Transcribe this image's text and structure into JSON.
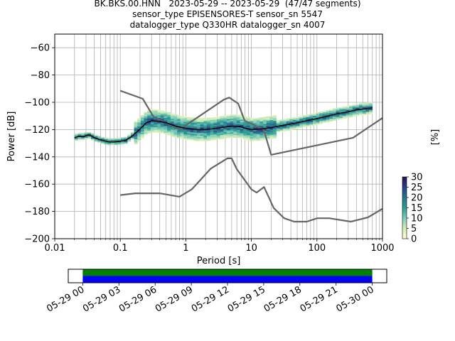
{
  "title": {
    "line1": "BK.BKS.00.HNN   2023-05-29 -- 2023-05-29  (47/47 segments)",
    "line2": "sensor_type EPISENSORES-T sensor_sn 5547",
    "line3": "datalogger_type Q330HR datalogger_sn 4007"
  },
  "chart_data": [
    {
      "type": "heatmap",
      "subtype": "probabilistic power spectral density",
      "xlabel": "Period [s]",
      "ylabel": "Power [dB]",
      "x_scale": "log",
      "xlim": [
        0.01,
        1000
      ],
      "ylim": [
        -200,
        -50
      ],
      "x_ticks": [
        0.01,
        0.1,
        1,
        10,
        100,
        1000
      ],
      "x_tick_labels": [
        "0.01",
        "0.1",
        "1",
        "10",
        "100",
        "1000"
      ],
      "y_ticks": [
        -60,
        -80,
        -100,
        -120,
        -140,
        -160,
        -180,
        -200
      ],
      "grid": true,
      "colorbar": {
        "label": "[%]",
        "ticks": [
          0,
          5,
          10,
          15,
          20,
          25,
          30
        ],
        "colormap": [
          "#ffffd9",
          "#d5eeb3",
          "#7ecdbb",
          "#2c9f91",
          "#1e7a8c",
          "#2c3c8c",
          "#2a1456"
        ]
      },
      "noise_models": {
        "high": {
          "x": [
            0.1,
            0.22,
            0.32,
            0.8,
            3.8,
            4.6,
            6.3,
            7.9,
            15.4,
            20,
            354.8,
            1000
          ],
          "y": [
            -91.5,
            -97.4,
            -110.5,
            -120,
            -98,
            -96.5,
            -101,
            -113.5,
            -120,
            -138.5,
            -126,
            -111.5
          ]
        },
        "low": {
          "x": [
            0.1,
            0.17,
            0.4,
            0.8,
            1.24,
            2.4,
            4.3,
            5,
            6,
            10,
            12,
            15.6,
            21.9,
            31.6,
            45,
            70,
            101,
            154,
            328,
            600,
            1000
          ],
          "y": [
            -168,
            -166.7,
            -166.7,
            -169.2,
            -163.7,
            -148.6,
            -141.1,
            -141.1,
            -149,
            -163.8,
            -166.2,
            -162.1,
            -177.5,
            -185,
            -187.5,
            -187.5,
            -185,
            -185,
            -187.5,
            -184.4,
            -178
          ]
        },
        "color": "#666666"
      },
      "median": {
        "x": [
          0.02,
          0.023,
          0.028,
          0.032,
          0.036,
          0.04,
          0.05,
          0.06,
          0.07,
          0.08,
          0.1,
          0.12,
          0.15,
          0.2,
          0.25,
          0.3,
          0.4,
          0.5,
          0.7,
          1,
          1.5,
          2,
          3,
          4,
          5,
          6,
          7,
          8,
          10,
          15,
          20,
          30,
          50,
          70,
          100,
          150,
          200,
          300,
          400,
          600,
          700
        ],
        "y": [
          -126,
          -125,
          -125,
          -124,
          -124.5,
          -126,
          -127.5,
          -128.5,
          -129,
          -129,
          -128.5,
          -128,
          -125,
          -119.5,
          -115,
          -113.5,
          -114,
          -115,
          -117.5,
          -119,
          -120,
          -120,
          -119,
          -118,
          -117.5,
          -117.5,
          -118,
          -119,
          -120,
          -119.5,
          -118.5,
          -117,
          -115,
          -113.5,
          -112,
          -110,
          -108.5,
          -107,
          -105.5,
          -104.5,
          -104
        ]
      },
      "median_color": "#000000"
    },
    {
      "type": "timeline",
      "x_tick_labels": [
        "05-29 00",
        "05-29 03",
        "05-29 06",
        "05-29 09",
        "05-29 12",
        "05-29 15",
        "05-29 18",
        "05-29 21",
        "05-30 00"
      ],
      "x_hours": [
        0,
        3,
        6,
        9,
        12,
        15,
        18,
        21,
        24
      ],
      "xlim_hours": [
        -1.2,
        25.2
      ],
      "data_coverage_hours": [
        0,
        24
      ],
      "bars": [
        {
          "color": "#008000",
          "start_hours": 0,
          "end_hours": 24
        },
        {
          "color": "#0000ff",
          "start_hours": 0,
          "end_hours": 24
        }
      ]
    }
  ]
}
